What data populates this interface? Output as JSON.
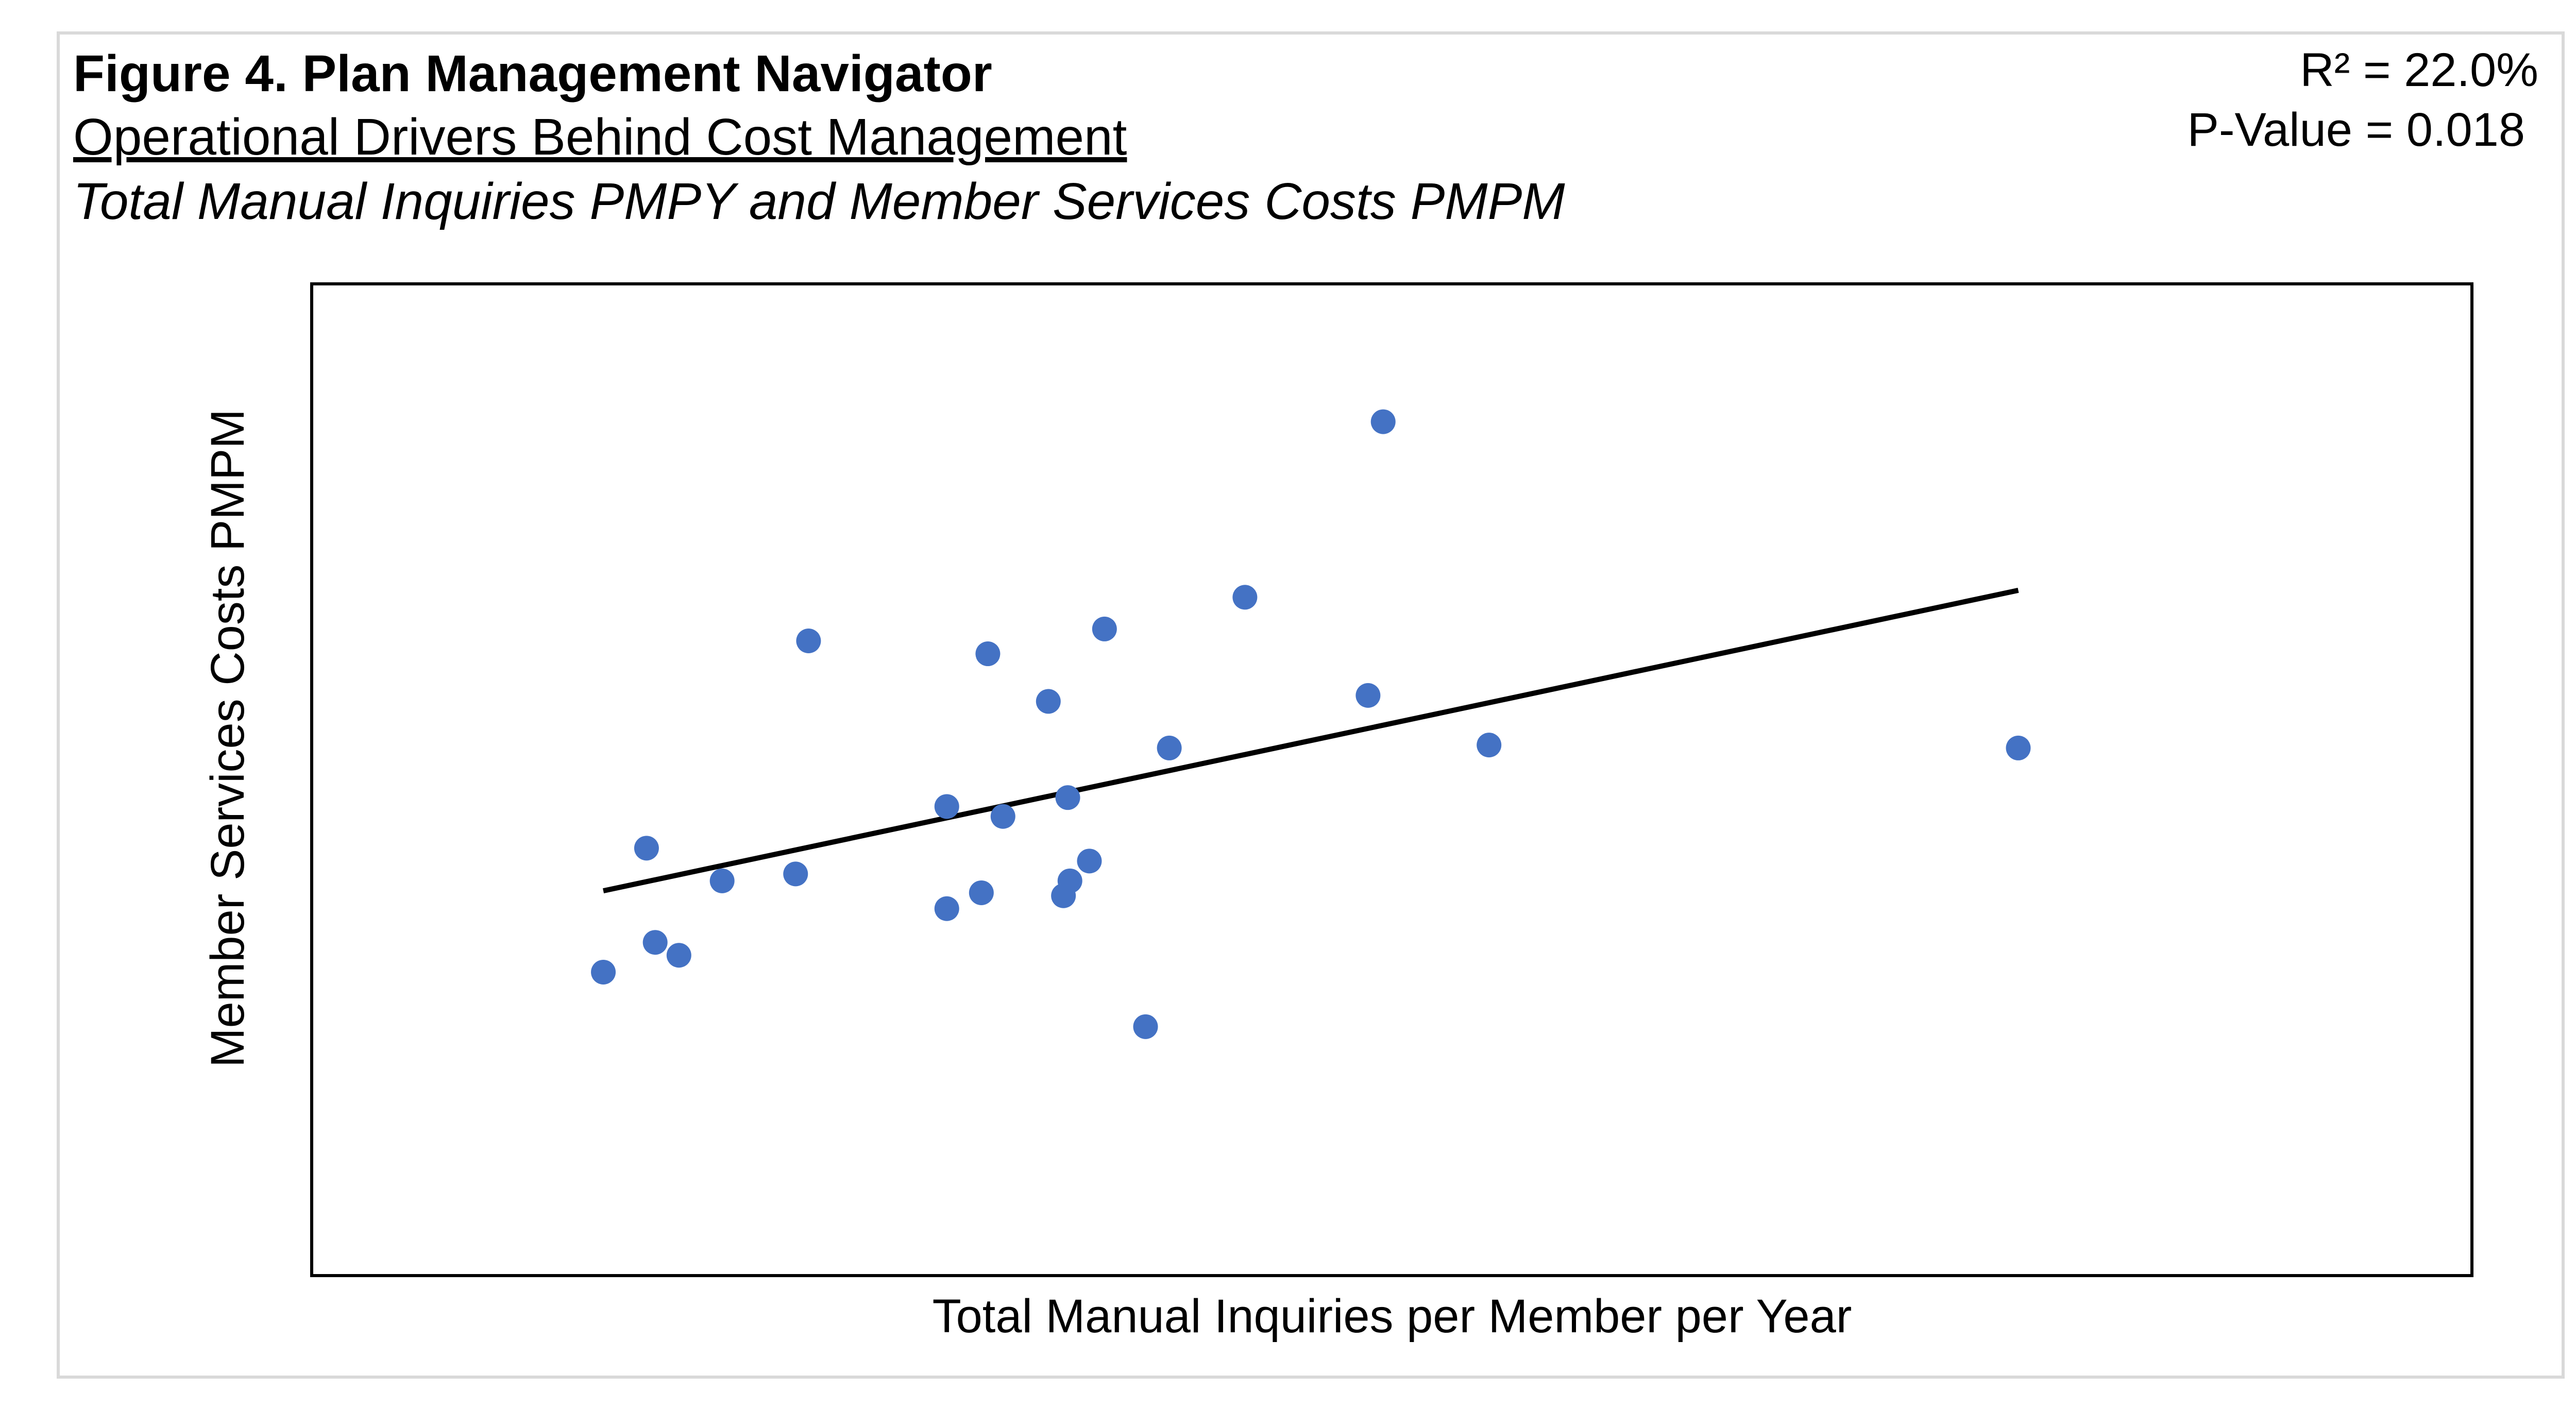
{
  "chart_data": {
    "type": "scatter",
    "title": "Figure 4. Plan Management Navigator",
    "subtitles": [
      "Operational Drivers Behind Cost Management",
      "Total Manual Inquiries PMPY and Member Services Costs PMPM"
    ],
    "annotations": [
      "R² = 22.0%",
      "P-Value = 0.018"
    ],
    "xlabel": "Total Manual Inquiries per Member per Year",
    "ylabel": "Member Services Costs PMPM",
    "xlim": [
      0,
      100
    ],
    "ylim": [
      0,
      100
    ],
    "series": [
      {
        "color": "#4472c4",
        "x": [
          13.5,
          15.5,
          15.9,
          17.0,
          19.0,
          22.4,
          23.0,
          29.4,
          29.4,
          31.0,
          31.3,
          32.0,
          34.1,
          35.0,
          35.1,
          34.8,
          36.0,
          36.7,
          38.6,
          39.7,
          43.2,
          48.9,
          49.6,
          54.5,
          79.0
        ],
        "values": [
          30.6,
          43.1,
          33.6,
          32.3,
          39.8,
          40.5,
          64.0,
          47.3,
          37.0,
          38.6,
          62.7,
          46.3,
          57.9,
          48.2,
          39.8,
          38.3,
          41.8,
          65.2,
          25.1,
          53.2,
          68.4,
          58.5,
          86.1,
          53.5,
          53.2
        ]
      }
    ],
    "trendline": {
      "color": "#000000",
      "x": [
        13.5,
        79.0
      ],
      "values": [
        38.8,
        69.1
      ]
    }
  }
}
